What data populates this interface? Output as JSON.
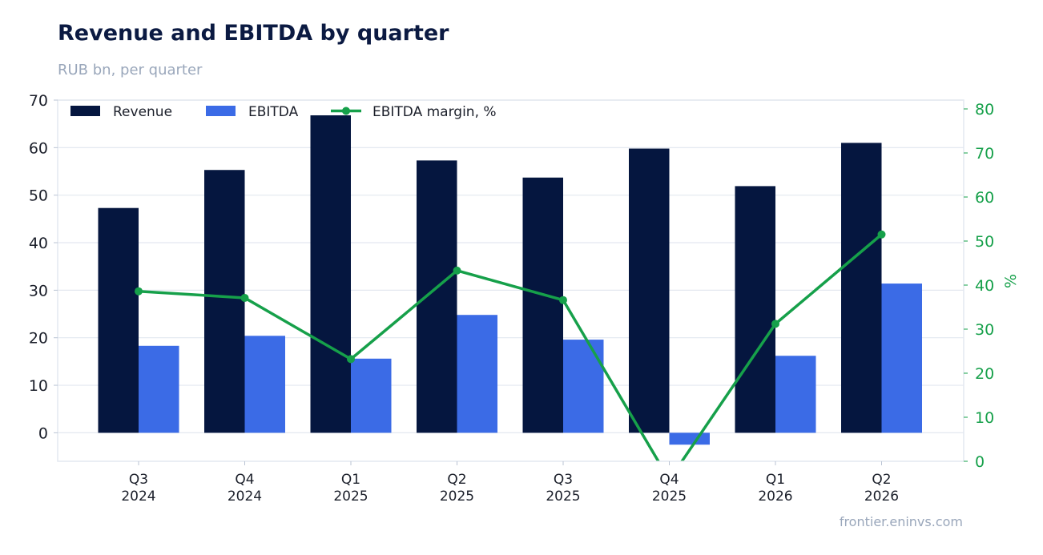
{
  "title": "Revenue and EBITDA by quarter",
  "subtitle": "RUB bn, per quarter",
  "source": "frontier.eninvs.com",
  "colors": {
    "revenue": "#05163f",
    "ebitda": "#3b6be6",
    "margin": "#16a04a",
    "grid": "#e3e8f0",
    "text": "#1b1f2a"
  },
  "chart_data": {
    "type": "bar",
    "categories": [
      [
        "Q3",
        "2024"
      ],
      [
        "Q4",
        "2024"
      ],
      [
        "Q1",
        "2025"
      ],
      [
        "Q2",
        "2025"
      ],
      [
        "Q3",
        "2025"
      ],
      [
        "Q4",
        "2025"
      ],
      [
        "Q1",
        "2026"
      ],
      [
        "Q2",
        "2026"
      ]
    ],
    "series": [
      {
        "name": "Revenue",
        "type": "bar",
        "axis": "left",
        "values": [
          47.3,
          55.3,
          66.8,
          57.3,
          53.7,
          59.8,
          51.9,
          61.0
        ]
      },
      {
        "name": "EBITDA",
        "type": "bar",
        "axis": "left",
        "values": [
          18.3,
          20.4,
          15.6,
          24.8,
          19.6,
          -2.5,
          16.2,
          31.4
        ]
      },
      {
        "name": "EBITDA margin, %",
        "type": "line",
        "axis": "right",
        "values": [
          38.6,
          37.1,
          23.2,
          43.3,
          36.6,
          -4.2,
          31.2,
          51.5
        ]
      }
    ],
    "xlabel": "",
    "ylabel": "",
    "ylabel_right": "%",
    "ylim": [
      -6,
      70
    ],
    "ylim_right": [
      0,
      82
    ],
    "yticks": [
      0,
      10,
      20,
      30,
      40,
      50,
      60,
      70
    ],
    "yticks_right": [
      0,
      10,
      20,
      30,
      40,
      50,
      60,
      70,
      80
    ],
    "legend_position": "top-left",
    "grid": true
  }
}
